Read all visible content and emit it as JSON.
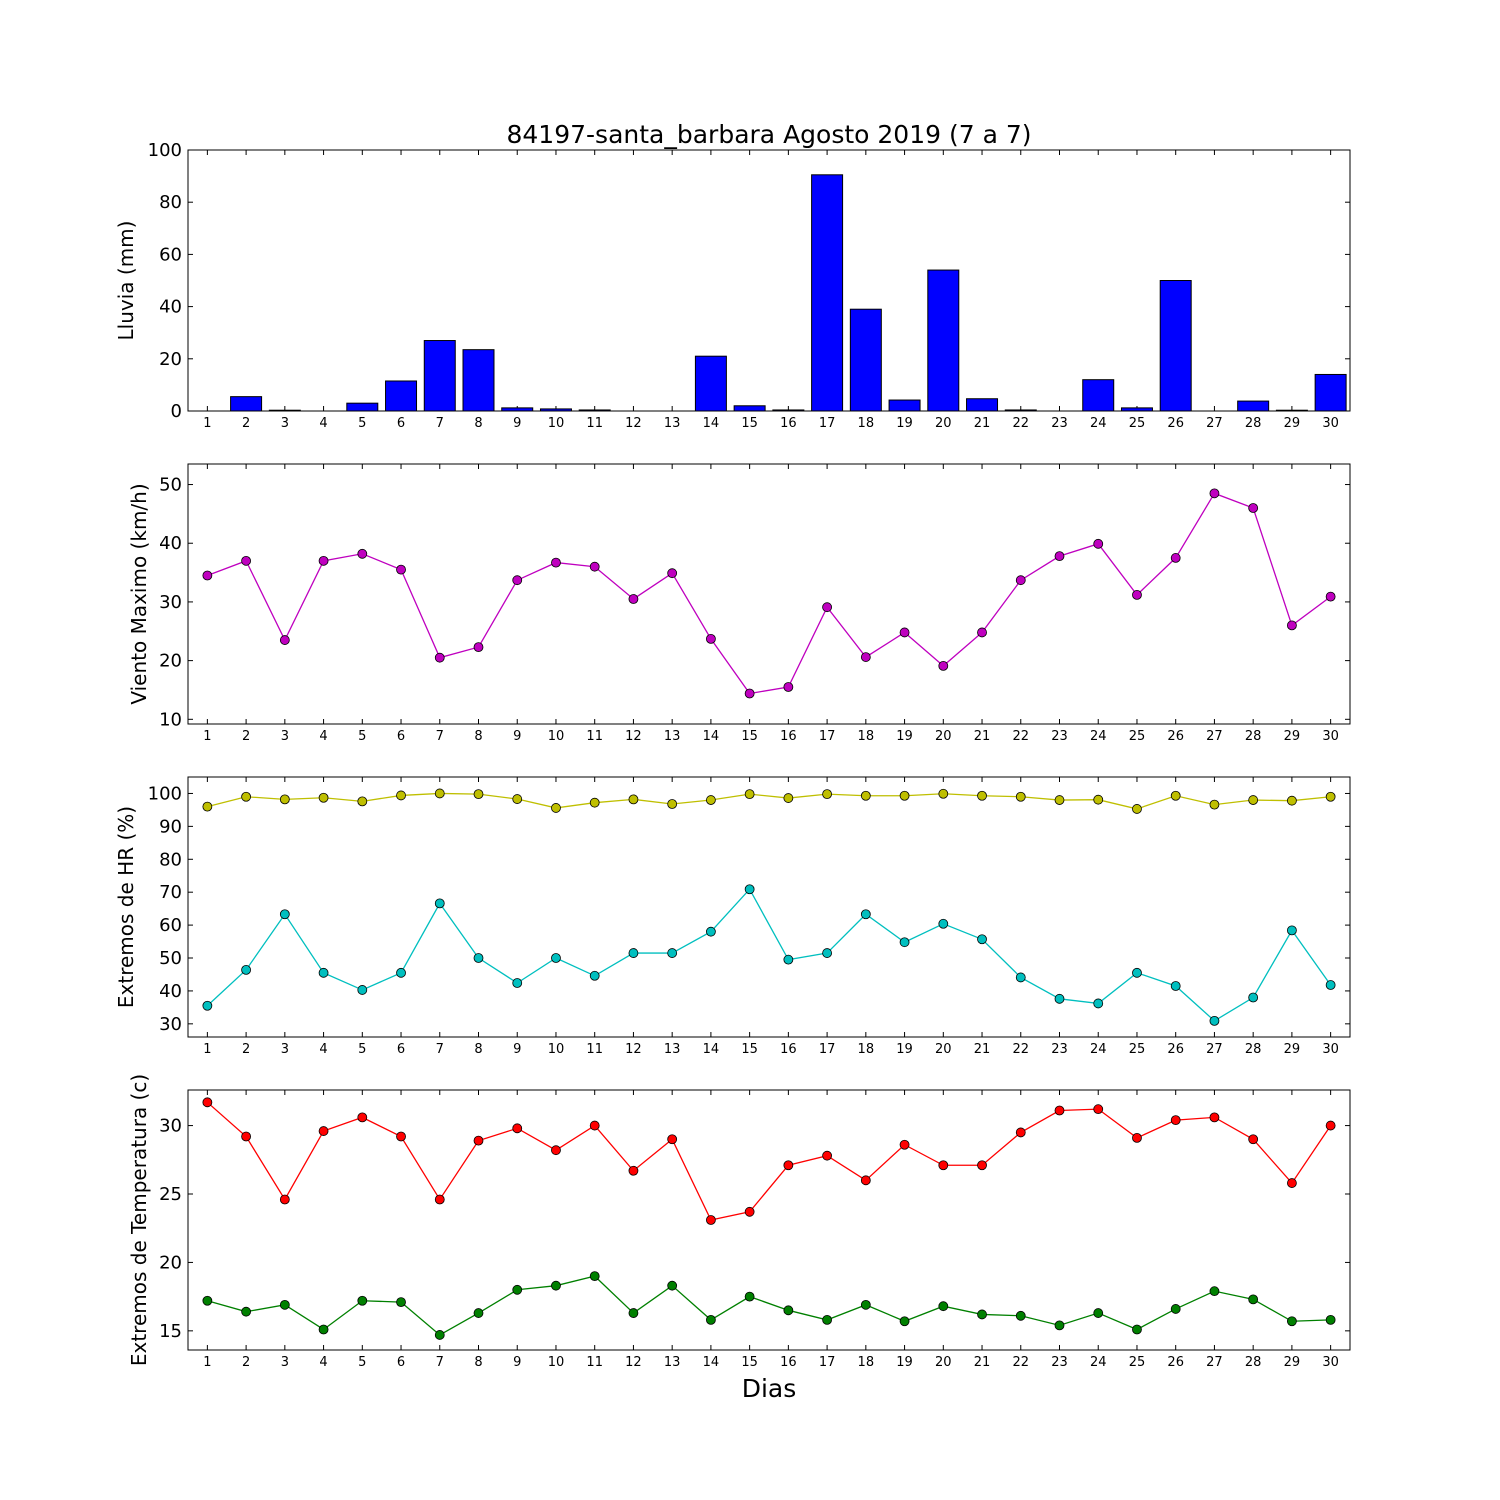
{
  "figure": {
    "title": "84197-santa_barbara Agosto 2019  (7 a 7)",
    "xlabel": "Dias"
  },
  "chart_data": [
    {
      "type": "bar",
      "ylabel": "Lluvia (mm)",
      "categories": [
        1,
        2,
        3,
        4,
        5,
        6,
        7,
        8,
        9,
        10,
        11,
        12,
        13,
        14,
        15,
        16,
        17,
        18,
        19,
        20,
        21,
        22,
        23,
        24,
        25,
        26,
        27,
        28,
        29,
        30
      ],
      "values": [
        0,
        5.5,
        0.3,
        0,
        3,
        11.5,
        27,
        23.5,
        1.2,
        0.8,
        0.4,
        0,
        0,
        21,
        2,
        0.4,
        90.5,
        39,
        4.2,
        54,
        4.7,
        0.4,
        0,
        12,
        1.2,
        50,
        0,
        3.8,
        0.3,
        14
      ],
      "ylim": [
        0,
        100
      ],
      "yticks": [
        0,
        20,
        40,
        60,
        80,
        100
      ],
      "color": "#0000ff"
    },
    {
      "type": "line",
      "ylabel": "Viento Maximo (km/h)",
      "categories": [
        1,
        2,
        3,
        4,
        5,
        6,
        7,
        8,
        9,
        10,
        11,
        12,
        13,
        14,
        15,
        16,
        17,
        18,
        19,
        20,
        21,
        22,
        23,
        24,
        25,
        26,
        27,
        28,
        29,
        30
      ],
      "series": [
        {
          "color": "#bf00bf",
          "values": [
            34.5,
            37,
            23.5,
            37,
            38.2,
            35.5,
            20.5,
            22.3,
            33.7,
            36.7,
            36,
            30.5,
            34.9,
            23.7,
            14.4,
            15.5,
            29.1,
            20.6,
            24.8,
            19.1,
            24.8,
            33.7,
            37.8,
            39.9,
            31.2,
            37.5,
            48.5,
            46,
            26,
            30.9
          ]
        }
      ],
      "ylim": [
        9.2,
        53.5
      ],
      "yticks": [
        10,
        20,
        30,
        40,
        50
      ]
    },
    {
      "type": "line",
      "ylabel": "Extremos de HR (%)",
      "categories": [
        1,
        2,
        3,
        4,
        5,
        6,
        7,
        8,
        9,
        10,
        11,
        12,
        13,
        14,
        15,
        16,
        17,
        18,
        19,
        20,
        21,
        22,
        23,
        24,
        25,
        26,
        27,
        28,
        29,
        30
      ],
      "series": [
        {
          "color": "#bfbf00",
          "values": [
            96,
            99,
            98.2,
            98.7,
            97.6,
            99.4,
            100,
            99.8,
            98.3,
            95.6,
            97.2,
            98.2,
            96.8,
            98,
            99.8,
            98.6,
            99.8,
            99.3,
            99.3,
            99.9,
            99.3,
            99,
            98,
            98.1,
            95.3,
            99.3,
            96.6,
            98,
            97.8,
            99
          ]
        },
        {
          "color": "#00bfbf",
          "values": [
            35.5,
            46.4,
            63.3,
            45.5,
            40.3,
            45.5,
            66.6,
            50,
            42.4,
            50,
            44.6,
            51.5,
            51.5,
            58,
            70.9,
            49.5,
            51.5,
            63.3,
            54.8,
            60.4,
            55.7,
            44.1,
            37.6,
            36.2,
            45.5,
            41.5,
            30.9,
            38,
            58.4,
            41.8
          ]
        }
      ],
      "ylim": [
        26,
        105
      ],
      "yticks": [
        30,
        40,
        50,
        60,
        70,
        80,
        90,
        100
      ]
    },
    {
      "type": "line",
      "ylabel": "Extremos de Temperatura (c)",
      "categories": [
        1,
        2,
        3,
        4,
        5,
        6,
        7,
        8,
        9,
        10,
        11,
        12,
        13,
        14,
        15,
        16,
        17,
        18,
        19,
        20,
        21,
        22,
        23,
        24,
        25,
        26,
        27,
        28,
        29,
        30
      ],
      "series": [
        {
          "color": "#ff0000",
          "values": [
            31.7,
            29.2,
            24.6,
            29.6,
            30.6,
            29.2,
            24.6,
            28.9,
            29.8,
            28.2,
            30,
            26.7,
            29,
            23.1,
            23.7,
            27.1,
            27.8,
            26,
            28.6,
            27.1,
            27.1,
            29.5,
            31.1,
            31.2,
            29.1,
            30.4,
            30.6,
            29,
            25.8,
            30
          ]
        },
        {
          "color": "#008000",
          "values": [
            17.2,
            16.4,
            16.9,
            15.1,
            17.2,
            17.1,
            14.7,
            16.3,
            18,
            18.3,
            19,
            16.3,
            18.3,
            15.8,
            17.5,
            16.5,
            15.8,
            16.9,
            15.7,
            16.8,
            16.2,
            16.1,
            15.4,
            16.3,
            15.1,
            16.6,
            17.9,
            17.3,
            15.7,
            15.8
          ]
        }
      ],
      "ylim": [
        13.6,
        32.6
      ],
      "yticks": [
        15,
        20,
        25,
        30
      ]
    }
  ]
}
